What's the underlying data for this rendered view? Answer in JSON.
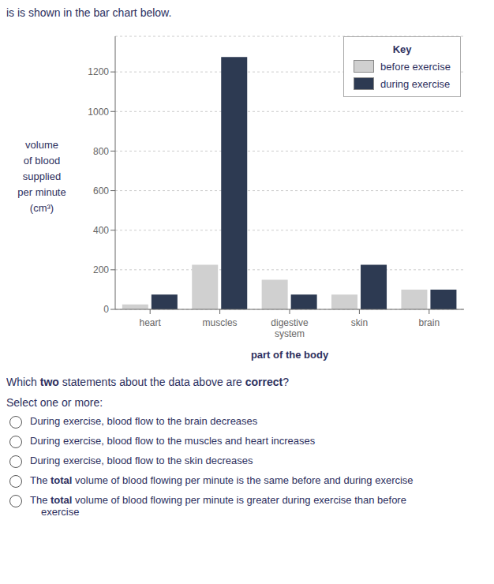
{
  "chart_data": {
    "type": "bar",
    "title": "is is shown in the bar chart below.",
    "xlabel": "part of the body",
    "ylabel": [
      "volume",
      "of blood",
      "supplied",
      "per minute",
      "(cm³)"
    ],
    "categories": [
      "heart",
      "muscles",
      "digestive\nsystem",
      "skin",
      "brain"
    ],
    "series": [
      {
        "name": "before exercise",
        "color": "#d0d0d0",
        "values": [
          25,
          225,
          150,
          75,
          100
        ]
      },
      {
        "name": "during exercise",
        "color": "#2d3a52",
        "values": [
          75,
          1275,
          75,
          225,
          100
        ]
      }
    ],
    "legend_title": "Key",
    "legend": "upper right",
    "ylim": [
      0,
      1380
    ],
    "yticks": [
      0,
      200,
      400,
      600,
      800,
      1000,
      1200
    ],
    "grid": true,
    "annotations": {
      "question": [
        "Which ",
        "two",
        " statements about the data above are ",
        "correct",
        "?"
      ],
      "instruction": [
        "Select one or more:"
      ],
      "options": [
        [
          [
            "During exercise, blood flow to the brain decreases"
          ]
        ],
        [
          [
            "During exercise, blood flow to the muscles and heart increases"
          ]
        ],
        [
          [
            "During exercise, blood flow to the skin decreases"
          ]
        ],
        [
          [
            "The ",
            "total",
            " volume of blood flowing per minute is the same before and during exercise"
          ]
        ],
        [
          [
            "The ",
            "total",
            " volume of blood flowing per minute is greater during exercise than before"
          ],
          [
            "exercise"
          ]
        ]
      ]
    }
  }
}
